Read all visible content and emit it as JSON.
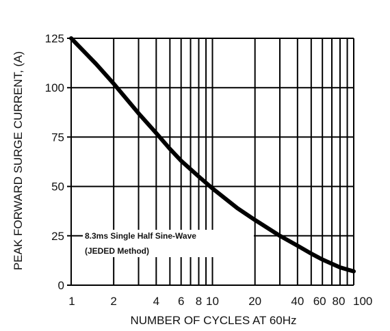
{
  "chart_data": {
    "type": "line",
    "title": "",
    "xlabel": "NUMBER OF CYCLES AT 60Hz",
    "ylabel": "PEAK FORWARD SURGE CURRENT, (A)",
    "x_scale": "log",
    "xlim": [
      1,
      100
    ],
    "ylim": [
      0,
      125
    ],
    "x_ticks": [
      1,
      2,
      4,
      6,
      8,
      10,
      20,
      40,
      60,
      80,
      100
    ],
    "x_tick_labels": [
      "1",
      "2",
      "4",
      "6",
      "8",
      "10",
      "20",
      "40",
      "60",
      "80",
      "100"
    ],
    "x_gridlines": [
      1,
      2,
      3,
      4,
      5,
      6,
      7,
      8,
      9,
      10,
      20,
      30,
      40,
      50,
      60,
      70,
      80,
      90,
      100
    ],
    "y_ticks": [
      0,
      25,
      50,
      75,
      100,
      125
    ],
    "y_tick_labels": [
      "0",
      "25",
      "50",
      "75",
      "100",
      "125"
    ],
    "grid": true,
    "annotation": [
      "8.3ms Single Half Sine-Wave",
      "(JEDED Method)"
    ],
    "series": [
      {
        "x": [
          1,
          1.5,
          2,
          3,
          4,
          5,
          6,
          8,
          10,
          15,
          20,
          30,
          40,
          50,
          60,
          80,
          100
        ],
        "y": [
          125,
          112,
          102,
          87,
          77,
          69,
          63,
          55,
          49,
          39,
          33,
          25,
          20,
          16,
          13,
          9,
          7
        ]
      }
    ]
  }
}
